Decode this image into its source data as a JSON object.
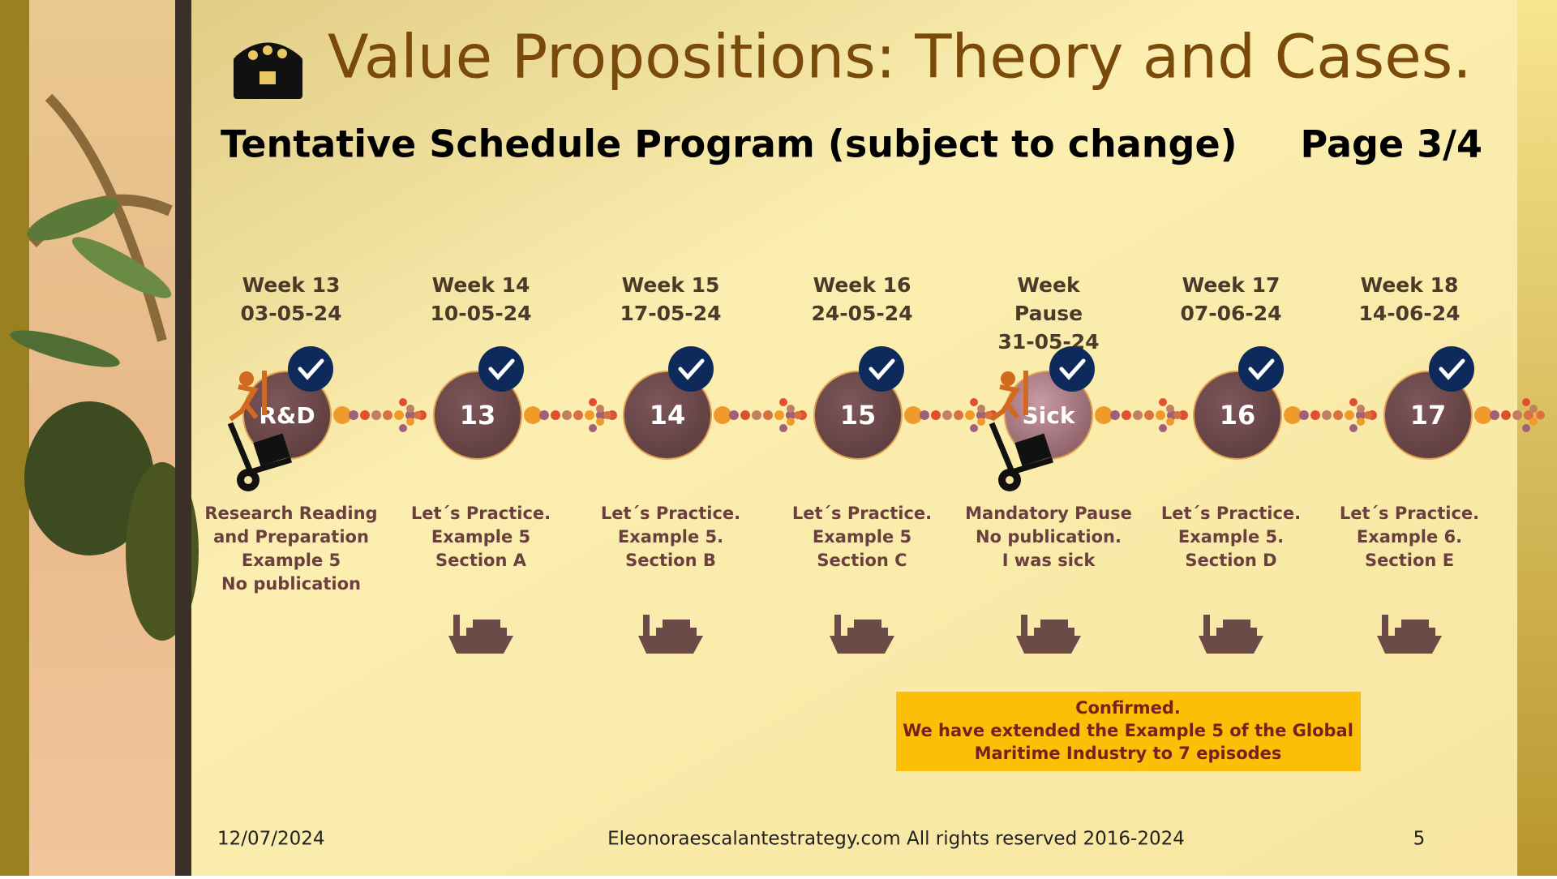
{
  "header": {
    "title": "Value Propositions: Theory and Cases.",
    "subtitle": "Tentative Schedule Program (subject to change)",
    "page": "Page 3/4"
  },
  "timeline": {
    "items": [
      {
        "heading": [
          "Week 13",
          "03-05-24"
        ],
        "circle": "R&D",
        "description": [
          "Research Reading",
          "and Preparation",
          "Example 5",
          "No publication"
        ]
      },
      {
        "heading": [
          "Week 14",
          "10-05-24"
        ],
        "circle": "13",
        "description": [
          "Let´s Practice.",
          "Example 5",
          "Section A"
        ]
      },
      {
        "heading": [
          "Week 15",
          "17-05-24"
        ],
        "circle": "14",
        "description": [
          "Let´s Practice.",
          "Example 5.",
          "Section B"
        ]
      },
      {
        "heading": [
          "Week 16",
          "24-05-24"
        ],
        "circle": "15",
        "description": [
          "Let´s Practice.",
          "Example 5",
          "Section C"
        ]
      },
      {
        "heading": [
          "Week",
          "Pause",
          "31-05-24"
        ],
        "circle": "Sick",
        "description": [
          "Mandatory Pause",
          "No publication.",
          "I was sick"
        ]
      },
      {
        "heading": [
          "Week 17",
          "07-06-24"
        ],
        "circle": "16",
        "description": [
          "Let´s Practice.",
          "Example 5.",
          "Section D"
        ]
      },
      {
        "heading": [
          "Week 18",
          "14-06-24"
        ],
        "circle": "17",
        "description": [
          "Let´s Practice.",
          "Example 6.",
          "Section E"
        ]
      }
    ]
  },
  "note": [
    "Confirmed.",
    "We have extended the Example 5 of the Global",
    "Maritime Industry to 7 episodes"
  ],
  "footer": {
    "date": "12/07/2024",
    "site": "Eleonoraescalantestrategy.com  All rights reserved 2016-2024",
    "number": "5"
  }
}
